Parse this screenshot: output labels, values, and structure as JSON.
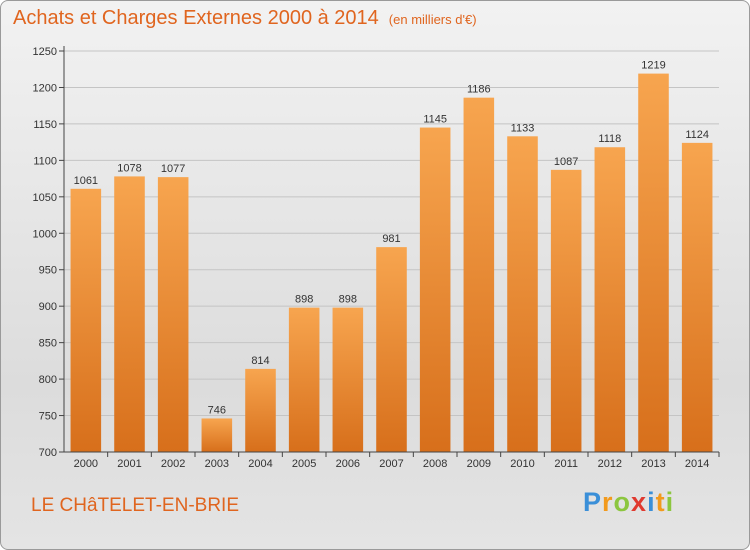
{
  "header": {
    "title": "Achats et Charges Externes 2000 à 2014",
    "subtitle": "(en milliers d'€)"
  },
  "footer": {
    "city": "LE CHâTELET-EN-BRIE",
    "logo_letters": [
      "P",
      "r",
      "o",
      "x",
      "i",
      "t",
      "i"
    ],
    "logo_colors": [
      "#3a8fd8",
      "#f29a1d",
      "#8cc63f",
      "#e03a2f",
      "#3a8fd8",
      "#f29a1d",
      "#8cc63f"
    ]
  },
  "chart_data": {
    "type": "bar",
    "title": "Achats et Charges Externes 2000 à 2014",
    "subtitle": "(en milliers d'€)",
    "categories": [
      "2000",
      "2001",
      "2002",
      "2003",
      "2004",
      "2005",
      "2006",
      "2007",
      "2008",
      "2009",
      "2010",
      "2011",
      "2012",
      "2013",
      "2014"
    ],
    "values": [
      1061,
      1078,
      1077,
      746,
      814,
      898,
      898,
      981,
      1145,
      1186,
      1133,
      1087,
      1118,
      1219,
      1124
    ],
    "ylim": [
      700,
      1250
    ],
    "yticks": [
      700,
      750,
      800,
      850,
      900,
      950,
      1000,
      1050,
      1100,
      1150,
      1200,
      1250
    ],
    "grid": true,
    "bar_color_top": "#f7a54f",
    "bar_color_bottom": "#d76f1b"
  }
}
